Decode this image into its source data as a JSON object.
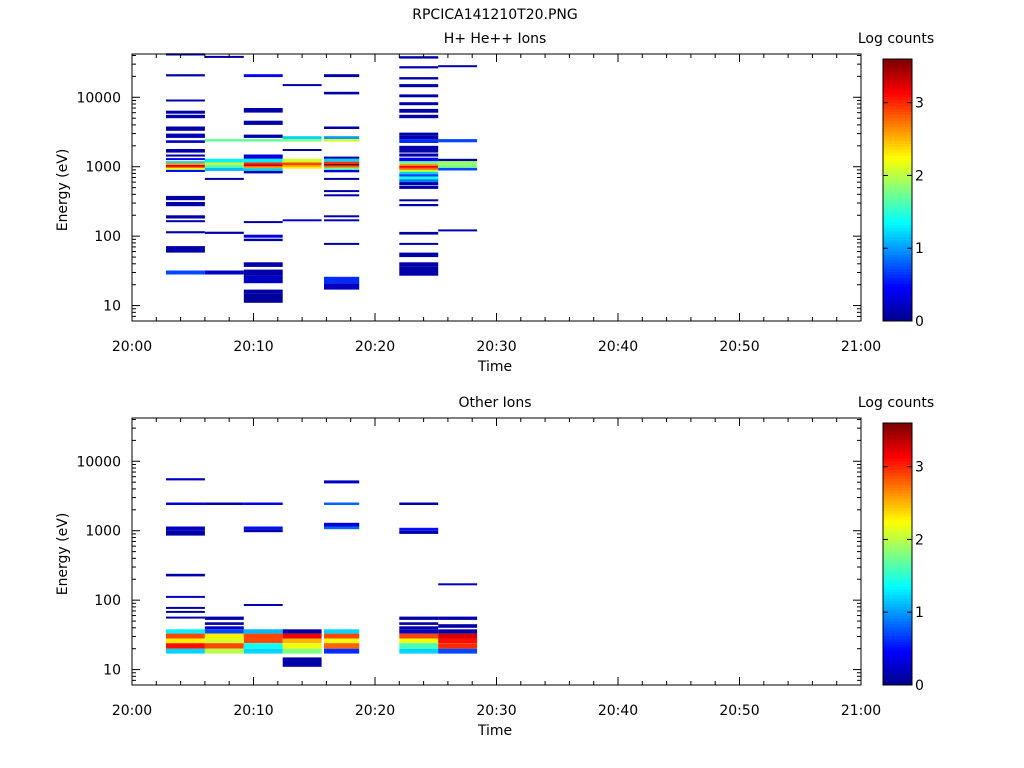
{
  "figure": {
    "title": "RPCICA141210T20.PNG"
  },
  "colorscale": [
    "#00008f",
    "#0000ff",
    "#0080ff",
    "#00ffff",
    "#80ff80",
    "#ffff00",
    "#ff8000",
    "#ff0000",
    "#800000"
  ],
  "chart_data": [
    {
      "type": "heatmap",
      "title": "H+ He++ Ions",
      "xlabel": "Time",
      "ylabel": "Energy (eV)",
      "colorbar_label": "Log counts",
      "x_ticks": [
        "20:00",
        "20:10",
        "20:20",
        "20:30",
        "20:40",
        "20:50",
        "21:00"
      ],
      "y_ticks": [
        "10",
        "100",
        "1000",
        "10000"
      ],
      "colorbar_ticks": [
        "0",
        "1",
        "2",
        "3"
      ],
      "xlim_minutes": [
        0,
        60
      ],
      "ylim_eV": [
        6,
        42000
      ],
      "clim": [
        0,
        3.6
      ],
      "y_scale": "log",
      "cells": [
        [
          2.8,
          6,
          40000,
          43000,
          0.1
        ],
        [
          2.8,
          6,
          20000,
          21500,
          0.1
        ],
        [
          2.8,
          6,
          8700,
          9300,
          0.1
        ],
        [
          2.8,
          6,
          5800,
          6400,
          0.1
        ],
        [
          2.8,
          6,
          5000,
          5600,
          0.1
        ],
        [
          2.8,
          6,
          3300,
          3800,
          0.1
        ],
        [
          2.8,
          6,
          2600,
          3000,
          0.15
        ],
        [
          2.8,
          6,
          2200,
          2400,
          0.2
        ],
        [
          2.8,
          6,
          1600,
          1800,
          0.1
        ],
        [
          2.8,
          6,
          1400,
          1500,
          0.1
        ],
        [
          2.8,
          6,
          1250,
          1330,
          0.4
        ],
        [
          2.8,
          6,
          1130,
          1200,
          1.2
        ],
        [
          2.8,
          6,
          1060,
          1130,
          2.6
        ],
        [
          2.8,
          6,
          1000,
          1060,
          3.3
        ],
        [
          2.8,
          6,
          960,
          1000,
          2.8
        ],
        [
          2.8,
          6,
          900,
          960,
          2.2
        ],
        [
          2.8,
          6,
          840,
          900,
          0.5
        ],
        [
          2.8,
          6,
          330,
          380,
          0.1
        ],
        [
          2.8,
          6,
          270,
          310,
          0.1
        ],
        [
          2.8,
          6,
          180,
          200,
          0.1
        ],
        [
          2.8,
          6,
          160,
          170,
          0.1
        ],
        [
          2.8,
          6,
          110,
          118,
          0.1
        ],
        [
          2.8,
          6,
          58,
          72,
          0.1
        ],
        [
          2.8,
          6,
          28,
          32,
          0.7
        ],
        [
          6,
          9.2,
          37000,
          39500,
          0.1
        ],
        [
          6,
          9.2,
          2300,
          2500,
          1.7
        ],
        [
          6,
          9.2,
          1150,
          1300,
          1.3
        ],
        [
          6,
          9.2,
          1050,
          1150,
          2.1
        ],
        [
          6,
          9.2,
          960,
          1050,
          1.6
        ],
        [
          6,
          9.2,
          870,
          960,
          1.1
        ],
        [
          6,
          9.2,
          650,
          690,
          0.1
        ],
        [
          6,
          9.2,
          108,
          116,
          0.1
        ],
        [
          6,
          9.2,
          28,
          32,
          0.2
        ],
        [
          9.2,
          12.4,
          19500,
          21500,
          0.4
        ],
        [
          9.2,
          12.4,
          6000,
          7000,
          0.1
        ],
        [
          9.2,
          12.4,
          4000,
          4600,
          0.1
        ],
        [
          9.2,
          12.4,
          2600,
          2900,
          0.1
        ],
        [
          9.2,
          12.4,
          2300,
          2500,
          1.7
        ],
        [
          9.2,
          12.4,
          1300,
          1500,
          0.3
        ],
        [
          9.2,
          12.4,
          1150,
          1300,
          1.3
        ],
        [
          9.2,
          12.4,
          1080,
          1150,
          3.0
        ],
        [
          9.2,
          12.4,
          1010,
          1080,
          3.3
        ],
        [
          9.2,
          12.4,
          950,
          1010,
          2.6
        ],
        [
          9.2,
          12.4,
          870,
          950,
          1.2
        ],
        [
          9.2,
          12.4,
          800,
          870,
          0.1
        ],
        [
          9.2,
          12.4,
          155,
          165,
          0.1
        ],
        [
          9.2,
          12.4,
          95,
          105,
          0.3
        ],
        [
          9.2,
          12.4,
          85,
          92,
          0.1
        ],
        [
          9.2,
          12.4,
          36,
          42,
          0.1
        ],
        [
          9.2,
          12.4,
          27,
          33,
          0.1
        ],
        [
          9.2,
          12.4,
          21,
          27,
          0.2
        ],
        [
          9.2,
          12.4,
          15,
          17,
          0.1
        ],
        [
          9.2,
          12.4,
          11,
          15,
          0.05
        ],
        [
          12.4,
          15.6,
          14500,
          15500,
          0.1
        ],
        [
          12.4,
          15.6,
          2500,
          2750,
          1.2
        ],
        [
          12.4,
          15.6,
          2300,
          2500,
          1.8
        ],
        [
          12.4,
          15.6,
          1700,
          1800,
          0.1
        ],
        [
          12.4,
          15.6,
          1150,
          1300,
          2.1
        ],
        [
          12.4,
          15.6,
          1060,
          1150,
          2.9
        ],
        [
          12.4,
          15.6,
          1000,
          1060,
          2.6
        ],
        [
          12.4,
          15.6,
          940,
          1000,
          2.3
        ],
        [
          12.4,
          15.6,
          165,
          175,
          0.3
        ],
        [
          15.8,
          18.7,
          19500,
          21500,
          0.1
        ],
        [
          15.8,
          18.7,
          11000,
          12000,
          0.1
        ],
        [
          15.8,
          18.7,
          3500,
          3800,
          0.1
        ],
        [
          15.8,
          18.7,
          2500,
          2750,
          1.0
        ],
        [
          15.8,
          18.7,
          2300,
          2500,
          2.1
        ],
        [
          15.8,
          18.7,
          1300,
          1400,
          0.1
        ],
        [
          15.8,
          18.7,
          1180,
          1300,
          1.2
        ],
        [
          15.8,
          18.7,
          1100,
          1180,
          3.0
        ],
        [
          15.8,
          18.7,
          1030,
          1100,
          3.6
        ],
        [
          15.8,
          18.7,
          970,
          1030,
          2.8
        ],
        [
          15.8,
          18.7,
          900,
          970,
          1.7
        ],
        [
          15.8,
          18.7,
          830,
          900,
          0.3
        ],
        [
          15.8,
          18.7,
          650,
          690,
          0.1
        ],
        [
          15.8,
          18.7,
          430,
          460,
          0.1
        ],
        [
          15.8,
          18.7,
          380,
          400,
          0.1
        ],
        [
          15.8,
          18.7,
          190,
          200,
          0.1
        ],
        [
          15.8,
          18.7,
          165,
          175,
          0.2
        ],
        [
          15.8,
          18.7,
          76,
          80,
          0.1
        ],
        [
          15.8,
          18.7,
          21,
          26,
          0.6
        ],
        [
          15.8,
          18.7,
          17,
          21,
          0.2
        ],
        [
          22,
          25.2,
          36000,
          39000,
          0.1
        ],
        [
          22,
          25.2,
          26000,
          28000,
          0.1
        ],
        [
          22,
          25.2,
          18000,
          19500,
          0.1
        ],
        [
          22,
          25.2,
          14000,
          15500,
          0.1
        ],
        [
          22,
          25.2,
          10000,
          11000,
          0.1
        ],
        [
          22,
          25.2,
          7700,
          8500,
          0.1
        ],
        [
          22,
          25.2,
          6000,
          6800,
          0.1
        ],
        [
          22,
          25.2,
          5000,
          5600,
          0.1
        ],
        [
          22,
          25.2,
          2800,
          3100,
          0.1
        ],
        [
          22,
          25.2,
          2500,
          2800,
          0.1
        ],
        [
          22,
          25.2,
          2200,
          2500,
          0.6
        ],
        [
          22,
          25.2,
          1800,
          2000,
          0.1
        ],
        [
          22,
          25.2,
          1600,
          1800,
          0.1
        ],
        [
          22,
          25.2,
          1400,
          1550,
          0.1
        ],
        [
          22,
          25.2,
          1200,
          1350,
          0.4
        ],
        [
          22,
          25.2,
          1100,
          1200,
          1.7
        ],
        [
          22,
          25.2,
          1030,
          1100,
          2.6
        ],
        [
          22,
          25.2,
          960,
          1030,
          3.2
        ],
        [
          22,
          25.2,
          900,
          960,
          2.8
        ],
        [
          22,
          25.2,
          840,
          900,
          2.0
        ],
        [
          22,
          25.2,
          780,
          840,
          1.2
        ],
        [
          22,
          25.2,
          720,
          780,
          0.7
        ],
        [
          22,
          25.2,
          660,
          720,
          1.4
        ],
        [
          22,
          25.2,
          600,
          660,
          0.9
        ],
        [
          22,
          25.2,
          540,
          600,
          0.1
        ],
        [
          22,
          25.2,
          480,
          530,
          0.1
        ],
        [
          22,
          25.2,
          320,
          340,
          0.1
        ],
        [
          22,
          25.2,
          270,
          290,
          0.1
        ],
        [
          22,
          25.2,
          105,
          115,
          0.1
        ],
        [
          22,
          25.2,
          75,
          80,
          0.1
        ],
        [
          22,
          25.2,
          50,
          58,
          0.1
        ],
        [
          22,
          25.2,
          36,
          42,
          0.1
        ],
        [
          22,
          25.2,
          27,
          36,
          0.1
        ],
        [
          25.2,
          28.4,
          27500,
          29000,
          0.1
        ],
        [
          25.2,
          28.4,
          2250,
          2500,
          0.7
        ],
        [
          25.2,
          28.4,
          1200,
          1300,
          0.1
        ],
        [
          25.2,
          28.4,
          1080,
          1200,
          1.9
        ],
        [
          25.2,
          28.4,
          960,
          1080,
          1.8
        ],
        [
          25.2,
          28.4,
          880,
          960,
          0.7
        ],
        [
          25.2,
          28.4,
          118,
          125,
          0.1
        ]
      ]
    },
    {
      "type": "heatmap",
      "title": "Other Ions",
      "xlabel": "Time",
      "ylabel": "Energy (eV)",
      "colorbar_label": "Log counts",
      "x_ticks": [
        "20:00",
        "20:10",
        "20:20",
        "20:30",
        "20:40",
        "20:50",
        "21:00"
      ],
      "y_ticks": [
        "10",
        "100",
        "1000",
        "10000"
      ],
      "colorbar_ticks": [
        "0",
        "1",
        "2",
        "3"
      ],
      "xlim_minutes": [
        0,
        60
      ],
      "ylim_eV": [
        6,
        42000
      ],
      "clim": [
        0,
        3.6
      ],
      "y_scale": "log",
      "cells": [
        [
          2.8,
          6,
          5300,
          5700,
          0.2
        ],
        [
          2.8,
          6,
          2350,
          2550,
          0.3
        ],
        [
          2.8,
          6,
          1000,
          1150,
          0.2
        ],
        [
          2.8,
          6,
          850,
          1000,
          0.1
        ],
        [
          2.8,
          6,
          220,
          240,
          0.1
        ],
        [
          2.8,
          6,
          108,
          115,
          0.2
        ],
        [
          2.8,
          6,
          75,
          80,
          0.1
        ],
        [
          2.8,
          6,
          66,
          70,
          0.1
        ],
        [
          2.8,
          6,
          55,
          58,
          0.1
        ],
        [
          2.8,
          6,
          33,
          38,
          1.3
        ],
        [
          2.8,
          6,
          28,
          33,
          2.9
        ],
        [
          2.8,
          6,
          24,
          28,
          2.3
        ],
        [
          2.8,
          6,
          20,
          24,
          3.1
        ],
        [
          2.8,
          6,
          17,
          20,
          1.2
        ],
        [
          6,
          9.2,
          2350,
          2550,
          0.1
        ],
        [
          6,
          9.2,
          52,
          58,
          0.1
        ],
        [
          6,
          9.2,
          44,
          48,
          0.1
        ],
        [
          6,
          9.2,
          38,
          42,
          0.2
        ],
        [
          6,
          9.2,
          33,
          38,
          0.7
        ],
        [
          6,
          9.2,
          28,
          33,
          2.3
        ],
        [
          6,
          9.2,
          24,
          28,
          2.1
        ],
        [
          6,
          9.2,
          20,
          24,
          2.9
        ],
        [
          6,
          9.2,
          17,
          20,
          2.0
        ],
        [
          9.2,
          12.4,
          2350,
          2550,
          0.4
        ],
        [
          9.2,
          12.4,
          1050,
          1150,
          0.5
        ],
        [
          9.2,
          12.4,
          950,
          1050,
          0.1
        ],
        [
          9.2,
          12.4,
          84,
          88,
          0.1
        ],
        [
          9.2,
          12.4,
          33,
          38,
          1.1
        ],
        [
          9.2,
          12.4,
          28,
          33,
          2.9
        ],
        [
          9.2,
          12.4,
          24,
          28,
          2.9
        ],
        [
          9.2,
          12.4,
          20,
          24,
          1.4
        ],
        [
          9.2,
          12.4,
          17,
          20,
          1.2
        ],
        [
          12.4,
          15.6,
          33,
          38,
          0.1
        ],
        [
          12.4,
          15.6,
          28,
          33,
          3.2
        ],
        [
          12.4,
          15.6,
          24,
          28,
          2.5
        ],
        [
          12.4,
          15.6,
          20,
          24,
          2.2
        ],
        [
          12.4,
          15.6,
          17,
          20,
          1.8
        ],
        [
          12.4,
          15.6,
          11,
          15,
          0.1
        ],
        [
          15.8,
          18.7,
          4800,
          5300,
          0.2
        ],
        [
          15.8,
          18.7,
          2350,
          2550,
          0.8
        ],
        [
          15.8,
          18.7,
          1150,
          1300,
          0.3
        ],
        [
          15.8,
          18.7,
          1050,
          1150,
          0.8
        ],
        [
          15.8,
          18.7,
          33,
          38,
          1.2
        ],
        [
          15.8,
          18.7,
          28,
          33,
          2.9
        ],
        [
          15.8,
          18.7,
          24,
          28,
          2.2
        ],
        [
          15.8,
          18.7,
          20,
          24,
          2.8
        ],
        [
          15.8,
          18.7,
          17,
          20,
          0.6
        ],
        [
          22,
          25.2,
          2350,
          2550,
          0.1
        ],
        [
          22,
          25.2,
          1000,
          1100,
          0.5
        ],
        [
          22,
          25.2,
          900,
          1000,
          0.1
        ],
        [
          22,
          25.2,
          52,
          58,
          0.1
        ],
        [
          22,
          25.2,
          44,
          48,
          0.1
        ],
        [
          22,
          25.2,
          38,
          42,
          0.1
        ],
        [
          22,
          25.2,
          33,
          38,
          0.2
        ],
        [
          22,
          25.2,
          28,
          33,
          2.9
        ],
        [
          22,
          25.2,
          24,
          28,
          2.2
        ],
        [
          22,
          25.2,
          20,
          24,
          1.6
        ],
        [
          22,
          25.2,
          17,
          20,
          1.2
        ],
        [
          25.2,
          28.4,
          165,
          175,
          0.2
        ],
        [
          25.2,
          28.4,
          52,
          58,
          0.1
        ],
        [
          25.2,
          28.4,
          40,
          45,
          0.1
        ],
        [
          25.2,
          28.4,
          33,
          38,
          0.1
        ],
        [
          25.2,
          28.4,
          28,
          33,
          3.3
        ],
        [
          25.2,
          28.4,
          24,
          28,
          3.1
        ],
        [
          25.2,
          28.4,
          20,
          24,
          3.0
        ],
        [
          25.2,
          28.4,
          17,
          20,
          0.7
        ]
      ]
    }
  ]
}
